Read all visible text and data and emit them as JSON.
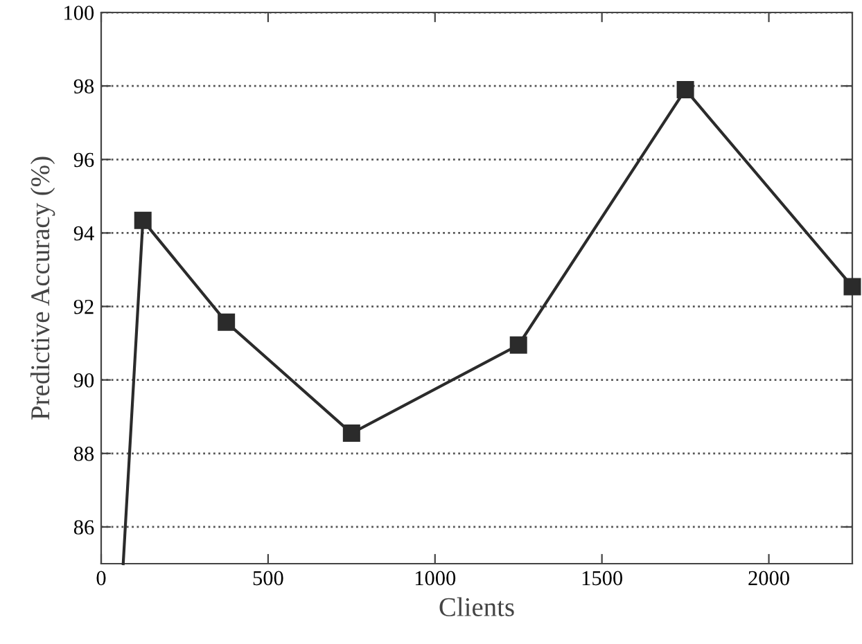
{
  "chart_data": {
    "type": "line",
    "xlabel": "Clients",
    "ylabel": "Predictive Accuracy (%)",
    "x": [
      66,
      125,
      375,
      750,
      1250,
      1750,
      2250
    ],
    "series": [
      {
        "color": "#2b2b2b",
        "values": [
          85,
          94.34,
          91.57,
          88.55,
          90.95,
          97.9,
          92.54
        ]
      }
    ],
    "xlim": [
      0,
      2250
    ],
    "xticks": [
      0,
      500,
      1000,
      1500,
      2000
    ],
    "ylim": [
      85,
      100
    ],
    "yticks": [
      86,
      88,
      90,
      92,
      94,
      96,
      98,
      100
    ],
    "grid": "y",
    "marker": "square",
    "line_style": "solid"
  }
}
